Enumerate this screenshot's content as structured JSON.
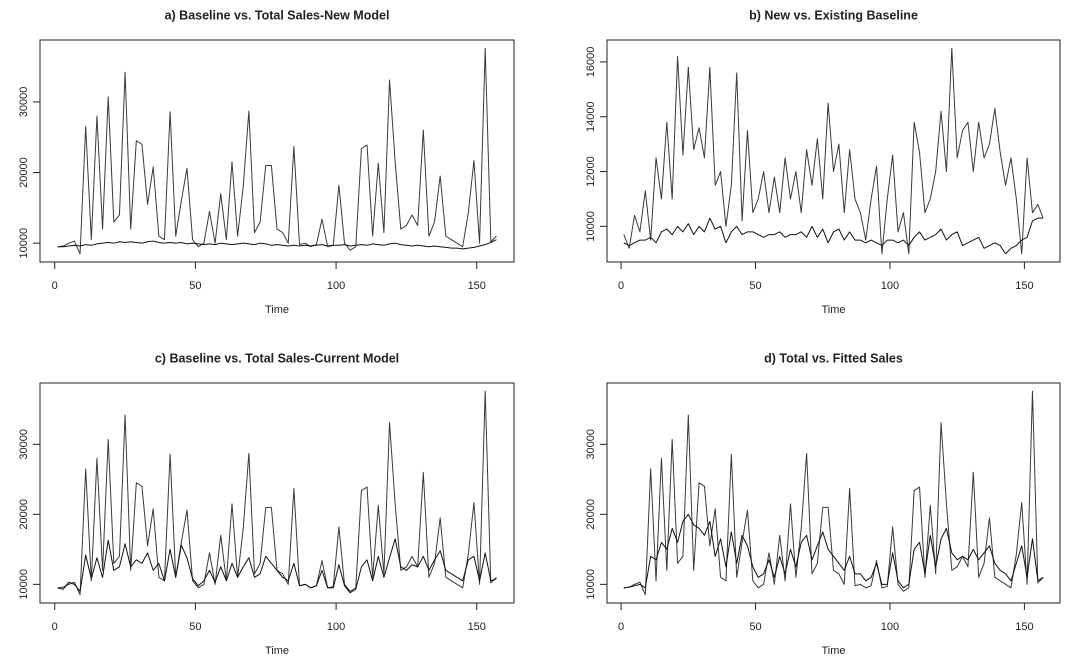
{
  "chart_data": [
    {
      "type": "line",
      "title": "a) Baseline vs. Total Sales-New Model",
      "xlabel": "Time",
      "x": [
        1,
        3,
        5,
        7,
        9,
        11,
        13,
        15,
        17,
        19,
        21,
        23,
        25,
        27,
        29,
        31,
        33,
        35,
        37,
        39,
        41,
        43,
        45,
        47,
        49,
        51,
        53,
        55,
        57,
        59,
        61,
        63,
        65,
        67,
        69,
        71,
        73,
        75,
        77,
        79,
        81,
        83,
        85,
        87,
        89,
        91,
        93,
        95,
        97,
        99,
        101,
        103,
        105,
        107,
        109,
        111,
        113,
        115,
        117,
        119,
        121,
        123,
        125,
        127,
        129,
        131,
        133,
        135,
        137,
        139,
        141,
        143,
        145,
        147,
        149,
        151,
        153,
        155,
        157
      ],
      "xlim": [
        -5.24,
        163.24
      ],
      "xticks": [
        0,
        50,
        100,
        150
      ],
      "ylim": [
        7336,
        38764
      ],
      "yticks": [
        10000,
        20000,
        30000
      ],
      "series": [
        {
          "color": "#3a3a3a",
          "values": [
            9500,
            9600,
            10000,
            10300,
            8500,
            26500,
            10500,
            28000,
            12000,
            30700,
            13000,
            14000,
            34200,
            12000,
            24500,
            24000,
            15500,
            20800,
            11000,
            10500,
            28600,
            11000,
            16000,
            20600,
            10500,
            9500,
            10000,
            14500,
            10000,
            17000,
            10500,
            21500,
            11000,
            18000,
            28700,
            11500,
            13000,
            21000,
            21000,
            12000,
            11500,
            10000,
            23700,
            9800,
            10000,
            9500,
            9800,
            13400,
            9500,
            9700,
            18200,
            10000,
            9000,
            9500,
            23400,
            23900,
            11000,
            21300,
            11500,
            33100,
            21500,
            12000,
            12500,
            14000,
            12500,
            26000,
            11000,
            13000,
            19500,
            11000,
            10500,
            10000,
            9500,
            14300,
            21700,
            10000,
            37600,
            10200,
            11000
          ]
        },
        {
          "color": "#111111",
          "values": [
            9500,
            9500,
            9600,
            9700,
            9600,
            9800,
            9700,
            9900,
            10000,
            10100,
            10000,
            10200,
            10100,
            10200,
            10100,
            10000,
            10200,
            10300,
            10100,
            10000,
            10100,
            10000,
            10100,
            9900,
            10000,
            9900,
            9800,
            9900,
            9800,
            10000,
            9900,
            9800,
            9900,
            10000,
            9900,
            9800,
            10000,
            9900,
            9700,
            9800,
            9700,
            9600,
            9700,
            9600,
            9700,
            9600,
            9700,
            9800,
            9600,
            9700,
            9700,
            9800,
            9600,
            9700,
            9800,
            9700,
            9900,
            9800,
            9700,
            9900,
            10000,
            9800,
            9700,
            9600,
            9700,
            9600,
            9500,
            9600,
            9500,
            9400,
            9300,
            9300,
            9200,
            9300,
            9400,
            9600,
            9800,
            10100,
            10500
          ]
        }
      ]
    },
    {
      "type": "line",
      "title": "b) New vs. Existing Baseline",
      "xlabel": "Time",
      "x": [
        1,
        3,
        5,
        7,
        9,
        11,
        13,
        15,
        17,
        19,
        21,
        23,
        25,
        27,
        29,
        31,
        33,
        35,
        37,
        39,
        41,
        43,
        45,
        47,
        49,
        51,
        53,
        55,
        57,
        59,
        61,
        63,
        65,
        67,
        69,
        71,
        73,
        75,
        77,
        79,
        81,
        83,
        85,
        87,
        89,
        91,
        93,
        95,
        97,
        99,
        101,
        103,
        105,
        107,
        109,
        111,
        113,
        115,
        117,
        119,
        121,
        123,
        125,
        127,
        129,
        131,
        133,
        135,
        137,
        139,
        141,
        143,
        145,
        147,
        149,
        151,
        153,
        155,
        157
      ],
      "xlim": [
        -5.24,
        163.24
      ],
      "xticks": [
        0,
        50,
        100,
        150
      ],
      "ylim": [
        8700,
        16800
      ],
      "yticks": [
        10000,
        12000,
        14000,
        16000
      ],
      "series": [
        {
          "color": "#3a3a3a",
          "values": [
            9700,
            9200,
            10400,
            9800,
            11300,
            9500,
            12500,
            11000,
            13800,
            11000,
            16200,
            12600,
            15800,
            12800,
            13600,
            12500,
            15800,
            11500,
            12000,
            10000,
            11500,
            15600,
            10200,
            13500,
            10500,
            11000,
            12000,
            10500,
            11800,
            10500,
            12500,
            11000,
            12000,
            10500,
            12800,
            11500,
            13200,
            11000,
            14500,
            12000,
            13000,
            10500,
            12800,
            11000,
            10500,
            9500,
            11000,
            12200,
            9000,
            11000,
            12600,
            9800,
            10500,
            9000,
            13800,
            12700,
            10500,
            11000,
            12000,
            14200,
            12000,
            16500,
            12500,
            13500,
            13800,
            12000,
            13800,
            12500,
            13000,
            14300,
            12700,
            11500,
            12500,
            11000,
            9000,
            12500,
            10500,
            10800,
            10300
          ]
        },
        {
          "color": "#111111",
          "values": [
            9400,
            9300,
            9400,
            9500,
            9500,
            9600,
            9400,
            9800,
            9900,
            9700,
            10000,
            9800,
            10100,
            9700,
            10000,
            9800,
            10300,
            9900,
            10000,
            9400,
            9800,
            10000,
            9700,
            9800,
            9800,
            9700,
            9600,
            9700,
            9700,
            9800,
            9600,
            9700,
            9700,
            9800,
            9600,
            10000,
            9600,
            9900,
            9400,
            9800,
            9900,
            9500,
            9800,
            9500,
            9500,
            9400,
            9500,
            9400,
            9300,
            9500,
            9500,
            9400,
            9500,
            9300,
            9600,
            9800,
            9500,
            9600,
            9700,
            9900,
            9500,
            9700,
            9800,
            9300,
            9400,
            9500,
            9600,
            9200,
            9300,
            9400,
            9300,
            9000,
            9200,
            9300,
            9500,
            9600,
            10200,
            10300,
            10300
          ]
        }
      ]
    },
    {
      "type": "line",
      "title": "c) Baseline vs. Total Sales-Current Model",
      "xlabel": "Time",
      "x": [
        1,
        3,
        5,
        7,
        9,
        11,
        13,
        15,
        17,
        19,
        21,
        23,
        25,
        27,
        29,
        31,
        33,
        35,
        37,
        39,
        41,
        43,
        45,
        47,
        49,
        51,
        53,
        55,
        57,
        59,
        61,
        63,
        65,
        67,
        69,
        71,
        73,
        75,
        77,
        79,
        81,
        83,
        85,
        87,
        89,
        91,
        93,
        95,
        97,
        99,
        101,
        103,
        105,
        107,
        109,
        111,
        113,
        115,
        117,
        119,
        121,
        123,
        125,
        127,
        129,
        131,
        133,
        135,
        137,
        139,
        141,
        143,
        145,
        147,
        149,
        151,
        153,
        155,
        157
      ],
      "xlim": [
        -5.24,
        163.24
      ],
      "xticks": [
        0,
        50,
        100,
        150
      ],
      "ylim": [
        7336,
        38764
      ],
      "yticks": [
        10000,
        20000,
        30000
      ],
      "series": [
        {
          "color": "#3a3a3a",
          "values": [
            9500,
            9600,
            10000,
            10300,
            8500,
            26500,
            10500,
            28000,
            12000,
            30700,
            13000,
            14000,
            34200,
            12000,
            24500,
            24000,
            15500,
            20800,
            11000,
            10500,
            28600,
            11000,
            16000,
            20600,
            10500,
            9500,
            10000,
            14500,
            10000,
            17000,
            10500,
            21500,
            11000,
            18000,
            28700,
            11500,
            13000,
            21000,
            21000,
            12000,
            11500,
            10000,
            23700,
            9800,
            10000,
            9500,
            9800,
            13400,
            9500,
            9700,
            18200,
            10000,
            9000,
            9500,
            23400,
            23900,
            11000,
            21300,
            11500,
            33100,
            21500,
            12000,
            12500,
            14000,
            12500,
            26000,
            11000,
            13000,
            19500,
            11000,
            10500,
            10000,
            9500,
            14300,
            21700,
            10000,
            37600,
            10200,
            11000
          ]
        },
        {
          "color": "#111111",
          "values": [
            9500,
            9300,
            10300,
            10000,
            9000,
            14200,
            10800,
            13800,
            11000,
            16300,
            12000,
            12500,
            15800,
            12500,
            13500,
            13000,
            14500,
            12000,
            13000,
            10500,
            15000,
            11000,
            15600,
            13800,
            10800,
            9800,
            10500,
            12000,
            10300,
            12500,
            10500,
            13000,
            11000,
            12500,
            13800,
            11000,
            11500,
            14000,
            13000,
            12000,
            11000,
            10500,
            13000,
            9800,
            10000,
            9500,
            9800,
            12000,
            9500,
            9500,
            12800,
            9800,
            8800,
            9300,
            12500,
            13500,
            10500,
            14000,
            11000,
            13800,
            16500,
            12500,
            12000,
            12800,
            12500,
            14000,
            12000,
            13500,
            14800,
            12000,
            11500,
            11000,
            10500,
            13500,
            14000,
            10500,
            14500,
            10500,
            10800
          ]
        }
      ]
    },
    {
      "type": "line",
      "title": "d) Total vs. Fitted Sales",
      "xlabel": "Time",
      "x": [
        1,
        3,
        5,
        7,
        9,
        11,
        13,
        15,
        17,
        19,
        21,
        23,
        25,
        27,
        29,
        31,
        33,
        35,
        37,
        39,
        41,
        43,
        45,
        47,
        49,
        51,
        53,
        55,
        57,
        59,
        61,
        63,
        65,
        67,
        69,
        71,
        73,
        75,
        77,
        79,
        81,
        83,
        85,
        87,
        89,
        91,
        93,
        95,
        97,
        99,
        101,
        103,
        105,
        107,
        109,
        111,
        113,
        115,
        117,
        119,
        121,
        123,
        125,
        127,
        129,
        131,
        133,
        135,
        137,
        139,
        141,
        143,
        145,
        147,
        149,
        151,
        153,
        155,
        157
      ],
      "xlim": [
        -5.24,
        163.24
      ],
      "xticks": [
        0,
        50,
        100,
        150
      ],
      "ylim": [
        7336,
        38764
      ],
      "yticks": [
        10000,
        20000,
        30000
      ],
      "series": [
        {
          "color": "#3a3a3a",
          "values": [
            9500,
            9600,
            10000,
            10300,
            8500,
            26500,
            10500,
            28000,
            12000,
            30700,
            13000,
            14000,
            34200,
            12000,
            24500,
            24000,
            15500,
            20800,
            11000,
            10500,
            28600,
            11000,
            16000,
            20600,
            10500,
            9500,
            10000,
            14500,
            10000,
            17000,
            10500,
            21500,
            11000,
            18000,
            28700,
            11500,
            13000,
            21000,
            21000,
            12000,
            11500,
            10000,
            23700,
            9800,
            10000,
            9500,
            9800,
            13400,
            9500,
            9700,
            18200,
            10000,
            9000,
            9500,
            23400,
            23900,
            11000,
            21300,
            11500,
            33100,
            21500,
            12000,
            12500,
            14000,
            12500,
            26000,
            11000,
            13000,
            19500,
            11000,
            10500,
            10000,
            9500,
            14300,
            21700,
            10000,
            37600,
            10200,
            11000
          ]
        },
        {
          "color": "#111111",
          "values": [
            9500,
            9600,
            9800,
            10000,
            9500,
            14000,
            13500,
            16000,
            15000,
            18000,
            16000,
            19000,
            20000,
            18500,
            18000,
            17000,
            19000,
            14000,
            16500,
            12500,
            17500,
            13000,
            17000,
            15500,
            12500,
            11000,
            11500,
            13500,
            11000,
            14000,
            11500,
            15000,
            12500,
            16000,
            17000,
            13500,
            15500,
            17500,
            15000,
            14000,
            13000,
            12000,
            14000,
            11500,
            11500,
            10500,
            11000,
            13000,
            10000,
            10000,
            14500,
            10500,
            9500,
            10000,
            15000,
            16000,
            11500,
            17000,
            12500,
            16500,
            18000,
            14500,
            13500,
            14000,
            13500,
            15000,
            13500,
            14500,
            15500,
            13000,
            12000,
            11500,
            10500,
            13000,
            15500,
            11000,
            16500,
            10500,
            11000
          ]
        }
      ]
    }
  ]
}
